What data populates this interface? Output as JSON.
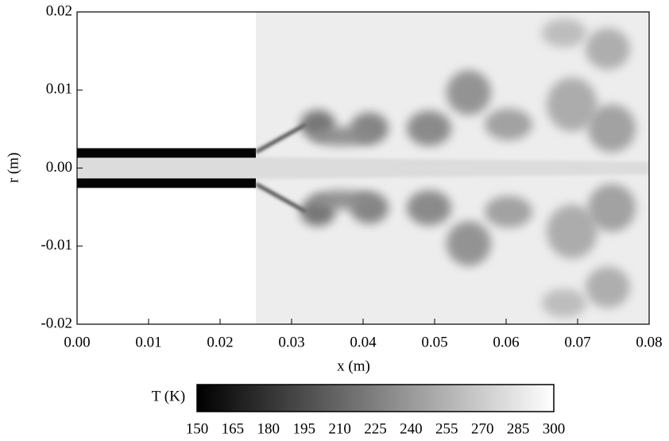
{
  "chart_data": {
    "type": "contour",
    "xlabel": "x (m)",
    "ylabel": "r (m)",
    "xlim": [
      0,
      0.08
    ],
    "xticks": [
      {
        "value": 0,
        "label": "0.00"
      },
      0.01,
      0.02,
      0.03,
      0.04,
      0.05,
      0.06,
      0.07,
      0.08
    ],
    "ylim": [
      -0.02,
      0.02
    ],
    "yticks": [
      -0.02,
      -0.01,
      {
        "value": 0,
        "label": "0.00"
      },
      0.01,
      0.02
    ],
    "colorbar": {
      "label": "T (K)",
      "lim": [
        150,
        300
      ],
      "ticks": [
        150,
        165,
        180,
        195,
        210,
        225,
        240,
        255,
        270,
        285,
        300
      ],
      "colors": [
        "#000000",
        "#ffffff"
      ]
    }
  }
}
